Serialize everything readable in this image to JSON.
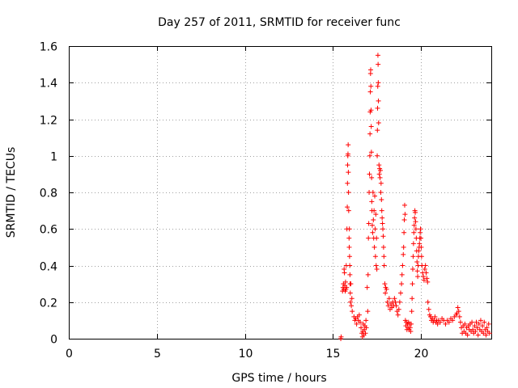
{
  "chart_data": {
    "type": "scatter",
    "title": "Day 257 of 2011, SRMTID for receiver func",
    "xlabel": "GPS time / hours",
    "ylabel": "SRMTID / TECUs",
    "xlim": [
      0,
      24
    ],
    "ylim": [
      0,
      1.6
    ],
    "xticks": [
      "0",
      "5",
      "10",
      "15",
      "20"
    ],
    "xtick_values": [
      0,
      5,
      10,
      15,
      20
    ],
    "yticks": [
      "0",
      "0.2",
      "0.4",
      "0.6",
      "0.8",
      "1",
      "1.2",
      "1.4",
      "1.6"
    ],
    "ytick_values": [
      0,
      0.2,
      0.4,
      0.6,
      0.8,
      1.0,
      1.2,
      1.4,
      1.6
    ],
    "grid": true,
    "marker": "+",
    "color": "#ff0000",
    "series": [
      {
        "name": "SRMTID",
        "points": [
          [
            15.45,
            0.0
          ],
          [
            15.47,
            0.01
          ],
          [
            15.55,
            0.26
          ],
          [
            15.58,
            0.28
          ],
          [
            15.6,
            0.3
          ],
          [
            15.62,
            0.27
          ],
          [
            15.64,
            0.38
          ],
          [
            15.66,
            0.36
          ],
          [
            15.68,
            0.29
          ],
          [
            15.7,
            0.26
          ],
          [
            15.72,
            0.31
          ],
          [
            15.74,
            0.27
          ],
          [
            15.76,
            0.4
          ],
          [
            15.78,
            0.28
          ],
          [
            15.8,
            0.6
          ],
          [
            15.82,
            0.72
          ],
          [
            15.83,
            0.85
          ],
          [
            15.84,
            0.95
          ],
          [
            15.85,
            1.0
          ],
          [
            15.86,
            1.01
          ],
          [
            15.87,
            1.06
          ],
          [
            15.88,
            0.91
          ],
          [
            15.89,
            0.8
          ],
          [
            15.9,
            0.7
          ],
          [
            15.92,
            0.55
          ],
          [
            15.93,
            0.5
          ],
          [
            15.94,
            0.6
          ],
          [
            15.95,
            0.45
          ],
          [
            15.96,
            0.4
          ],
          [
            15.97,
            0.35
          ],
          [
            15.98,
            0.3
          ],
          [
            15.99,
            0.25
          ],
          [
            16.0,
            0.2
          ],
          [
            16.02,
            0.3
          ],
          [
            16.05,
            0.18
          ],
          [
            16.08,
            0.22
          ],
          [
            16.1,
            0.15
          ],
          [
            16.2,
            0.12
          ],
          [
            16.25,
            0.1
          ],
          [
            16.3,
            0.11
          ],
          [
            16.35,
            0.08
          ],
          [
            16.4,
            0.12
          ],
          [
            16.45,
            0.1
          ],
          [
            16.5,
            0.13
          ],
          [
            16.55,
            0.09
          ],
          [
            16.6,
            0.06
          ],
          [
            16.65,
            0.03
          ],
          [
            16.68,
            0.01
          ],
          [
            16.7,
            0.04
          ],
          [
            16.73,
            0.08
          ],
          [
            16.76,
            0.02
          ],
          [
            16.79,
            0.05
          ],
          [
            16.82,
            0.07
          ],
          [
            16.85,
            0.03
          ],
          [
            16.88,
            0.1
          ],
          [
            16.9,
            0.06
          ],
          [
            16.95,
            0.28
          ],
          [
            16.98,
            0.15
          ],
          [
            17.0,
            0.35
          ],
          [
            17.02,
            0.55
          ],
          [
            17.04,
            0.63
          ],
          [
            17.06,
            0.8
          ],
          [
            17.08,
            0.9
          ],
          [
            17.1,
            1.0
          ],
          [
            17.11,
            1.12
          ],
          [
            17.12,
            1.24
          ],
          [
            17.13,
            1.35
          ],
          [
            17.14,
            1.45
          ],
          [
            17.15,
            1.47
          ],
          [
            17.16,
            1.38
          ],
          [
            17.17,
            1.25
          ],
          [
            17.18,
            1.16
          ],
          [
            17.19,
            1.02
          ],
          [
            17.2,
            0.88
          ],
          [
            17.21,
            0.75
          ],
          [
            17.22,
            0.7
          ],
          [
            17.24,
            0.62
          ],
          [
            17.26,
            0.58
          ],
          [
            17.28,
            0.8
          ],
          [
            17.3,
            0.65
          ],
          [
            17.32,
            0.55
          ],
          [
            17.34,
            0.7
          ],
          [
            17.36,
            0.5
          ],
          [
            17.38,
            0.78
          ],
          [
            17.4,
            0.6
          ],
          [
            17.42,
            0.45
          ],
          [
            17.44,
            0.68
          ],
          [
            17.46,
            0.4
          ],
          [
            17.48,
            0.55
          ],
          [
            17.5,
            0.38
          ],
          [
            17.52,
            1.0
          ],
          [
            17.53,
            1.14
          ],
          [
            17.54,
            1.26
          ],
          [
            17.55,
            1.38
          ],
          [
            17.56,
            1.55
          ],
          [
            17.57,
            1.5
          ],
          [
            17.58,
            1.4
          ],
          [
            17.59,
            1.3
          ],
          [
            17.6,
            1.18
          ],
          [
            17.62,
            0.95
          ],
          [
            17.64,
            0.9
          ],
          [
            17.66,
            0.93
          ],
          [
            17.68,
            0.88
          ],
          [
            17.7,
            0.92
          ],
          [
            17.72,
            0.8
          ],
          [
            17.74,
            0.85
          ],
          [
            17.76,
            0.76
          ],
          [
            17.78,
            0.7
          ],
          [
            17.8,
            0.66
          ],
          [
            17.82,
            0.63
          ],
          [
            17.84,
            0.6
          ],
          [
            17.86,
            0.56
          ],
          [
            17.88,
            0.5
          ],
          [
            17.9,
            0.45
          ],
          [
            17.92,
            0.4
          ],
          [
            17.95,
            0.3
          ],
          [
            17.98,
            0.25
          ],
          [
            18.0,
            0.28
          ],
          [
            18.05,
            0.27
          ],
          [
            18.1,
            0.2
          ],
          [
            18.15,
            0.18
          ],
          [
            18.2,
            0.22
          ],
          [
            18.25,
            0.16
          ],
          [
            18.3,
            0.19
          ],
          [
            18.35,
            0.17
          ],
          [
            18.4,
            0.2
          ],
          [
            18.45,
            0.18
          ],
          [
            18.5,
            0.22
          ],
          [
            18.55,
            0.2
          ],
          [
            18.6,
            0.18
          ],
          [
            18.65,
            0.15
          ],
          [
            18.7,
            0.13
          ],
          [
            18.75,
            0.16
          ],
          [
            18.8,
            0.2
          ],
          [
            18.85,
            0.25
          ],
          [
            18.9,
            0.3
          ],
          [
            18.93,
            0.35
          ],
          [
            18.96,
            0.4
          ],
          [
            19.0,
            0.46
          ],
          [
            19.02,
            0.5
          ],
          [
            19.04,
            0.58
          ],
          [
            19.06,
            0.65
          ],
          [
            19.08,
            0.73
          ],
          [
            19.1,
            0.68
          ],
          [
            19.12,
            0.1
          ],
          [
            19.15,
            0.07
          ],
          [
            19.18,
            0.09
          ],
          [
            19.21,
            0.05
          ],
          [
            19.24,
            0.08
          ],
          [
            19.27,
            0.06
          ],
          [
            19.3,
            0.09
          ],
          [
            19.33,
            0.05
          ],
          [
            19.36,
            0.08
          ],
          [
            19.39,
            0.06
          ],
          [
            19.42,
            0.04
          ],
          [
            19.45,
            0.08
          ],
          [
            19.48,
            0.15
          ],
          [
            19.5,
            0.22
          ],
          [
            19.52,
            0.3
          ],
          [
            19.54,
            0.38
          ],
          [
            19.56,
            0.45
          ],
          [
            19.58,
            0.52
          ],
          [
            19.6,
            0.58
          ],
          [
            19.62,
            0.62
          ],
          [
            19.64,
            0.66
          ],
          [
            19.66,
            0.7
          ],
          [
            19.68,
            0.69
          ],
          [
            19.7,
            0.64
          ],
          [
            19.72,
            0.6
          ],
          [
            19.74,
            0.55
          ],
          [
            19.76,
            0.48
          ],
          [
            19.78,
            0.42
          ],
          [
            19.8,
            0.37
          ],
          [
            19.82,
            0.34
          ],
          [
            19.84,
            0.4
          ],
          [
            19.86,
            0.45
          ],
          [
            19.88,
            0.48
          ],
          [
            19.9,
            0.5
          ],
          [
            19.92,
            0.52
          ],
          [
            19.94,
            0.55
          ],
          [
            19.96,
            0.58
          ],
          [
            19.98,
            0.6
          ],
          [
            20.0,
            0.55
          ],
          [
            20.02,
            0.5
          ],
          [
            20.04,
            0.45
          ],
          [
            20.06,
            0.4
          ],
          [
            20.1,
            0.36
          ],
          [
            20.14,
            0.34
          ],
          [
            20.18,
            0.32
          ],
          [
            20.22,
            0.38
          ],
          [
            20.26,
            0.4
          ],
          [
            20.3,
            0.36
          ],
          [
            20.34,
            0.33
          ],
          [
            20.38,
            0.31
          ],
          [
            20.4,
            0.2
          ],
          [
            20.45,
            0.16
          ],
          [
            20.5,
            0.13
          ],
          [
            20.55,
            0.12
          ],
          [
            20.6,
            0.1
          ],
          [
            20.65,
            0.11
          ],
          [
            20.7,
            0.09
          ],
          [
            20.75,
            0.1
          ],
          [
            20.8,
            0.12
          ],
          [
            20.85,
            0.09
          ],
          [
            20.9,
            0.1
          ],
          [
            20.95,
            0.08
          ],
          [
            21.0,
            0.1
          ],
          [
            21.1,
            0.09
          ],
          [
            21.2,
            0.11
          ],
          [
            21.3,
            0.1
          ],
          [
            21.4,
            0.08
          ],
          [
            21.5,
            0.1
          ],
          [
            21.6,
            0.09
          ],
          [
            21.7,
            0.11
          ],
          [
            21.8,
            0.1
          ],
          [
            21.9,
            0.12
          ],
          [
            22.0,
            0.13
          ],
          [
            22.05,
            0.14
          ],
          [
            22.1,
            0.17
          ],
          [
            22.15,
            0.15
          ],
          [
            22.2,
            0.12
          ],
          [
            22.25,
            0.09
          ],
          [
            22.3,
            0.06
          ],
          [
            22.35,
            0.03
          ],
          [
            22.4,
            0.07
          ],
          [
            22.45,
            0.04
          ],
          [
            22.5,
            0.08
          ],
          [
            22.55,
            0.03
          ],
          [
            22.6,
            0.06
          ],
          [
            22.65,
            0.02
          ],
          [
            22.7,
            0.07
          ],
          [
            22.75,
            0.05
          ],
          [
            22.8,
            0.08
          ],
          [
            22.85,
            0.04
          ],
          [
            22.9,
            0.09
          ],
          [
            22.95,
            0.05
          ],
          [
            23.0,
            0.03
          ],
          [
            23.05,
            0.07
          ],
          [
            23.1,
            0.04
          ],
          [
            23.15,
            0.09
          ],
          [
            23.2,
            0.06
          ],
          [
            23.25,
            0.02
          ],
          [
            23.3,
            0.08
          ],
          [
            23.35,
            0.05
          ],
          [
            23.4,
            0.1
          ],
          [
            23.45,
            0.04
          ],
          [
            23.5,
            0.07
          ],
          [
            23.55,
            0.03
          ],
          [
            23.6,
            0.09
          ],
          [
            23.65,
            0.05
          ],
          [
            23.7,
            0.02
          ],
          [
            23.75,
            0.06
          ],
          [
            23.8,
            0.04
          ],
          [
            23.85,
            0.08
          ],
          [
            23.9,
            0.03
          ]
        ]
      }
    ]
  }
}
